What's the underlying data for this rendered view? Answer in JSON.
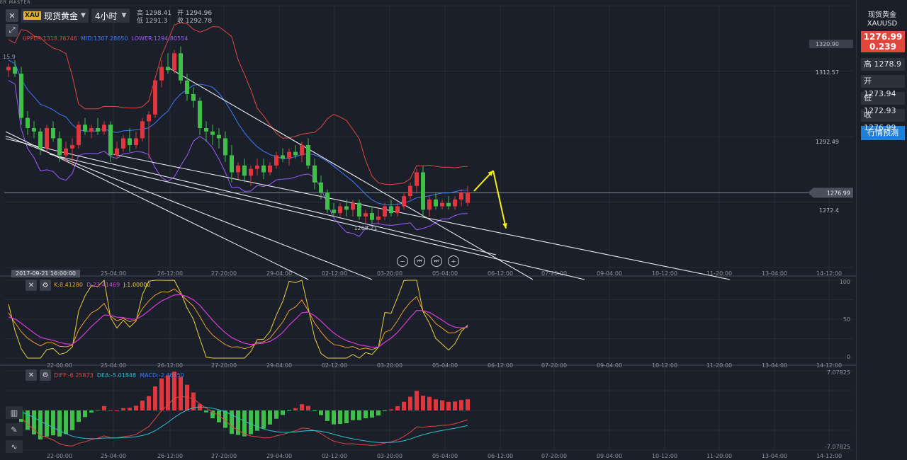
{
  "brand": "ER MASTER",
  "toolbar": {
    "close_label": "✕",
    "symbol_badge": "XAU",
    "symbol_name": "现货黄金",
    "timeframe": "4小时",
    "high_label": "高 1298.41",
    "low_label": "低 1291.3",
    "open_label": "开 1294.96",
    "close_val_label": "收 1292.78"
  },
  "indicators": {
    "boll_upper": "UPPER:1318.76746",
    "boll_mid": "MID:1307.28650",
    "boll_lower": "LOWER:1294.80554",
    "kdj_k": "K:8.41280",
    "kdj_d": "D:23.41469",
    "kdj_j": "J:1.00000",
    "macd_diff": "DIFF:-6.25873",
    "macd_dea": "DEA:-5.01848",
    "macd_macd": "MACD:-2.46450"
  },
  "colors": {
    "background": "#1b1f2a",
    "up": "#e0373f",
    "down": "#3fbf4a",
    "boll_upper": "#e0473c",
    "boll_mid": "#3d7dff",
    "boll_lower": "#9b5cff",
    "k_line": "#f0a030",
    "d_line": "#d83cd8",
    "j_line": "#e8d040",
    "dea_line": "#2ec0d0",
    "diff_line": "#e0473c",
    "arrow": "#f5ee1a",
    "trend_lines": "#e8eaee",
    "accent_blue": "#1e7fd9"
  },
  "sidebar": {
    "title_line1": "现货黄金",
    "title_line2": "XAUUSD",
    "price": "1276.99",
    "change": "0.239",
    "high": "高 1278.9",
    "open": "开 1273.94",
    "low": "低 1272.93",
    "close": "收 1276.99",
    "forecast_button": "行情预测"
  },
  "date_pill": "2017-09-21 16:00:00",
  "chart_data": {
    "type": "candlestick",
    "symbol": "XAUUSD",
    "timeframe": "4H",
    "x_tick_labels": [
      "25-04:00",
      "26-12:00",
      "27-20:00",
      "29-04:00",
      "02-12:00",
      "03-20:00",
      "05-04:00",
      "06-12:00",
      "07-20:00",
      "09-04:00",
      "10-12:00",
      "11-20:00",
      "13-04:00",
      "14-12:00"
    ],
    "x_tick_labels_lower_panes": [
      "22-00:00",
      "25-04:00",
      "26-12:00",
      "27-20:00",
      "29-04:00",
      "02-12:00",
      "03-20:00",
      "05-04:00",
      "06-12:00",
      "07-20:00",
      "09-04:00",
      "10-12:00",
      "11-20:00",
      "13-04:00",
      "14-12:00"
    ],
    "price_labels": [
      "1320.90",
      "1312.57",
      "1292.49",
      "1276.99",
      "1272.4"
    ],
    "price_ylim": [
      1255,
      1332
    ],
    "left_price_label": "15.9",
    "low_annotation": "1268.21",
    "current_price": 1276.99,
    "candles": [
      [
        1313,
        1315,
        1311,
        1314
      ],
      [
        1314,
        1316,
        1311,
        1312
      ],
      [
        1312,
        1314,
        1297,
        1299
      ],
      [
        1299,
        1301,
        1294,
        1296
      ],
      [
        1296,
        1298,
        1293,
        1295
      ],
      [
        1295,
        1296,
        1288,
        1290
      ],
      [
        1290,
        1297,
        1289,
        1296
      ],
      [
        1296,
        1298,
        1292,
        1293
      ],
      [
        1293,
        1295,
        1286,
        1288
      ],
      [
        1288,
        1292,
        1286,
        1290
      ],
      [
        1290,
        1293,
        1285,
        1291
      ],
      [
        1291,
        1298,
        1290,
        1297
      ],
      [
        1297,
        1299,
        1294,
        1295
      ],
      [
        1295,
        1297,
        1293,
        1296
      ],
      [
        1296,
        1299,
        1294,
        1295
      ],
      [
        1295,
        1298,
        1294,
        1297
      ],
      [
        1297,
        1298,
        1286,
        1288
      ],
      [
        1288,
        1292,
        1287,
        1290
      ],
      [
        1290,
        1294,
        1289,
        1293
      ],
      [
        1293,
        1296,
        1289,
        1291
      ],
      [
        1291,
        1295,
        1290,
        1293
      ],
      [
        1293,
        1299,
        1292,
        1298
      ],
      [
        1298,
        1301,
        1287,
        1300
      ],
      [
        1300,
        1311,
        1299,
        1310
      ],
      [
        1310,
        1316,
        1308,
        1314
      ],
      [
        1314,
        1318,
        1312,
        1313
      ],
      [
        1313,
        1319,
        1312,
        1318
      ],
      [
        1318,
        1320,
        1309,
        1310
      ],
      [
        1310,
        1312,
        1304,
        1306
      ],
      [
        1306,
        1308,
        1302,
        1304
      ],
      [
        1304,
        1305,
        1294,
        1296
      ],
      [
        1296,
        1298,
        1292,
        1295
      ],
      [
        1295,
        1297,
        1291,
        1294
      ],
      [
        1294,
        1296,
        1290,
        1293
      ],
      [
        1293,
        1295,
        1286,
        1288
      ],
      [
        1288,
        1291,
        1280,
        1283
      ],
      [
        1283,
        1286,
        1281,
        1285
      ],
      [
        1285,
        1287,
        1280,
        1282
      ],
      [
        1282,
        1285,
        1279,
        1284
      ],
      [
        1284,
        1287,
        1282,
        1285
      ],
      [
        1285,
        1287,
        1281,
        1283
      ],
      [
        1283,
        1286,
        1282,
        1285
      ],
      [
        1285,
        1289,
        1284,
        1288
      ],
      [
        1288,
        1290,
        1286,
        1287
      ],
      [
        1287,
        1290,
        1285,
        1289
      ],
      [
        1289,
        1291,
        1287,
        1288
      ],
      [
        1288,
        1292,
        1286,
        1291
      ],
      [
        1291,
        1293,
        1284,
        1285
      ],
      [
        1285,
        1287,
        1278,
        1280
      ],
      [
        1280,
        1282,
        1275,
        1277
      ],
      [
        1277,
        1278,
        1271,
        1272
      ],
      [
        1272,
        1274,
        1270,
        1271
      ],
      [
        1271,
        1274,
        1270,
        1273
      ],
      [
        1273,
        1275,
        1270,
        1272
      ],
      [
        1272,
        1275,
        1270,
        1274
      ],
      [
        1274,
        1275,
        1269,
        1270
      ],
      [
        1270,
        1272,
        1268,
        1271
      ],
      [
        1271,
        1273,
        1268,
        1269
      ],
      [
        1269,
        1272,
        1268,
        1270
      ],
      [
        1270,
        1274,
        1269,
        1273
      ],
      [
        1273,
        1275,
        1270,
        1271
      ],
      [
        1271,
        1274,
        1270,
        1273
      ],
      [
        1273,
        1277,
        1272,
        1276
      ],
      [
        1276,
        1280,
        1275,
        1279
      ],
      [
        1279,
        1284,
        1277,
        1283
      ],
      [
        1283,
        1285,
        1270,
        1272
      ],
      [
        1272,
        1276,
        1270,
        1275
      ],
      [
        1275,
        1277,
        1272,
        1273
      ],
      [
        1273,
        1275,
        1272,
        1274
      ],
      [
        1274,
        1276,
        1272,
        1273
      ],
      [
        1273,
        1276,
        1272,
        1275
      ],
      [
        1275,
        1278,
        1273,
        1277
      ],
      [
        1274,
        1279,
        1273,
        1277
      ]
    ],
    "forecast_arrows": [
      {
        "from": [
          1277.5,
          73
        ],
        "to": [
          1283.5,
          76
        ]
      },
      {
        "from": [
          1283.5,
          76
        ],
        "to": [
          1266.5,
          78
        ]
      }
    ],
    "kdj_ylim": [
      0,
      100
    ],
    "kdj_labels": [
      "100",
      "50",
      "0"
    ],
    "macd_labels": [
      "7.07825",
      "-7.07825"
    ],
    "macd_ylim": [
      -7.07825,
      7.07825
    ]
  }
}
